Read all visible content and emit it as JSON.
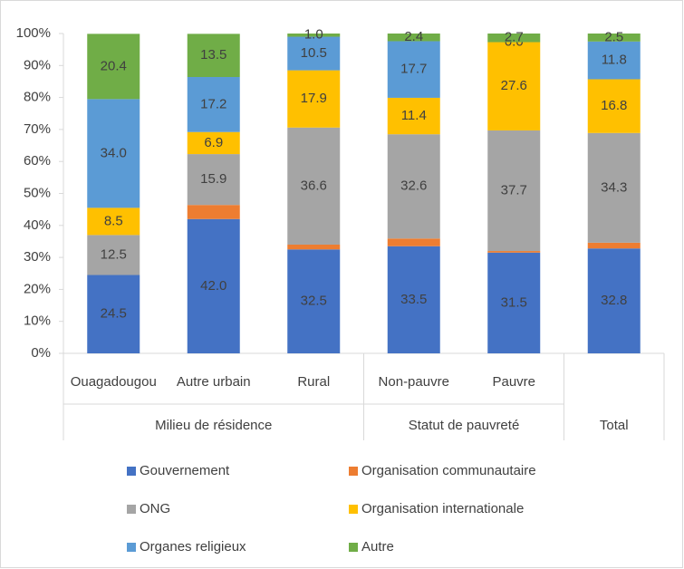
{
  "chart_data": {
    "type": "stacked_bar",
    "categories": [
      "Ouagadougou",
      "Autre urbain",
      "Rural",
      "Non-pauvre",
      "Pauvre",
      null
    ],
    "groups": [
      {
        "label": "Milieu de résidence",
        "span": 3
      },
      {
        "label": "Statut de pauvreté",
        "span": 2
      },
      {
        "label": "Total",
        "span": 1
      }
    ],
    "series": [
      {
        "name": "Gouvernement",
        "color": "#4472c4",
        "values": [
          24.5,
          42.0,
          32.5,
          33.5,
          31.5,
          32.8
        ],
        "value_labels": [
          "24.5",
          "42.0",
          "32.5",
          "33.5",
          "31.5",
          "32.8"
        ]
      },
      {
        "name": "Organisation communautaire",
        "color": "#ed7d31",
        "values": [
          0,
          4.4,
          1.5,
          2.4,
          0.5,
          1.8
        ]
      },
      {
        "name": "ONG",
        "color": "#a5a5a5",
        "values": [
          12.5,
          15.9,
          36.6,
          32.6,
          37.7,
          34.3
        ],
        "value_labels": [
          "12.5",
          "15.9",
          "36.6",
          "32.6",
          "37.7",
          "34.3"
        ]
      },
      {
        "name": "Organisation internationale",
        "color": "#ffc000",
        "values": [
          8.5,
          6.9,
          17.9,
          11.4,
          27.6,
          16.8
        ],
        "value_labels": [
          "8.5",
          "6.9",
          "17.9",
          "11.4",
          "27.6",
          "16.8"
        ]
      },
      {
        "name": "Organes religieux",
        "color": "#5b9bd5",
        "values": [
          34.0,
          17.2,
          10.5,
          17.7,
          0.0,
          11.8
        ],
        "value_labels": [
          "34.0",
          "17.2",
          "10.5",
          "17.7",
          "0.0",
          "11.8"
        ]
      },
      {
        "name": "Autre",
        "color": "#70ad47",
        "values": [
          20.4,
          13.5,
          1.0,
          2.4,
          2.7,
          2.5
        ],
        "value_labels": [
          "20.4",
          "13.5",
          "1.0",
          "2.4",
          "2.7",
          "2.5"
        ]
      }
    ],
    "ylim": [
      0,
      100
    ],
    "yticks": [
      {
        "value": 0,
        "label": "0%"
      },
      {
        "value": 10,
        "label": "10%"
      },
      {
        "value": 20,
        "label": "20%"
      },
      {
        "value": 30,
        "label": "30%"
      },
      {
        "value": 40,
        "label": "40%"
      },
      {
        "value": 50,
        "label": "50%"
      },
      {
        "value": 60,
        "label": "60%"
      },
      {
        "value": 70,
        "label": "70%"
      },
      {
        "value": 80,
        "label": "80%"
      },
      {
        "value": 90,
        "label": "90%"
      },
      {
        "value": 100,
        "label": "100%"
      }
    ],
    "legend": "bottom"
  }
}
